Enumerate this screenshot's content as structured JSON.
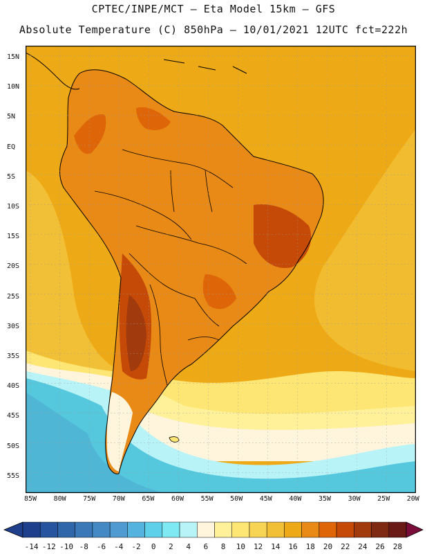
{
  "header": {
    "title_line1": "CPTEC/INPE/MCT –  Eta Model 15km – GFS",
    "title_line2": "Absolute Temperature (C) 850hPa – 10/01/2021 12UTC fct=222h"
  },
  "map": {
    "lat_labels": [
      "15N",
      "10N",
      "5N",
      "EQ",
      "5S",
      "10S",
      "15S",
      "20S",
      "25S",
      "30S",
      "35S",
      "40S",
      "45S",
      "50S",
      "55S"
    ],
    "lon_labels": [
      "85W",
      "80W",
      "75W",
      "70W",
      "65W",
      "60W",
      "55W",
      "50W",
      "45W",
      "40W",
      "35W",
      "30W",
      "25W",
      "20W"
    ]
  },
  "colorbar": {
    "labels": [
      "-14",
      "-12",
      "-10",
      "-8",
      "-6",
      "-4",
      "-2",
      "0",
      "2",
      "4",
      "6",
      "8",
      "10",
      "12",
      "14",
      "16",
      "18",
      "20",
      "22",
      "24",
      "26",
      "28"
    ],
    "colors": [
      "#1e3f8c",
      "#27549e",
      "#2f66aa",
      "#3a78b8",
      "#4488c4",
      "#4f9bd1",
      "#55b3df",
      "#5fd0ea",
      "#7ee9f2",
      "#b7f3f7",
      "#fff5dc",
      "#fff09a",
      "#fde673",
      "#f8d454",
      "#f2c036",
      "#eeaa16",
      "#e98a16",
      "#de6608",
      "#c54a08",
      "#a13a0c",
      "#7e2a12",
      "#6a1a16"
    ],
    "under_color": "#1f3e8c",
    "over_color": "#7a0c3a"
  },
  "legend_colors": {
    "ocean_bg": "#eeaa16",
    "land_bg": "#e98a16",
    "hot": "#c54a08",
    "hotter": "#a13a0c",
    "cold_south": "#55c8de",
    "cool_south": "#b7f3f7",
    "warm_south": "#fde673"
  }
}
